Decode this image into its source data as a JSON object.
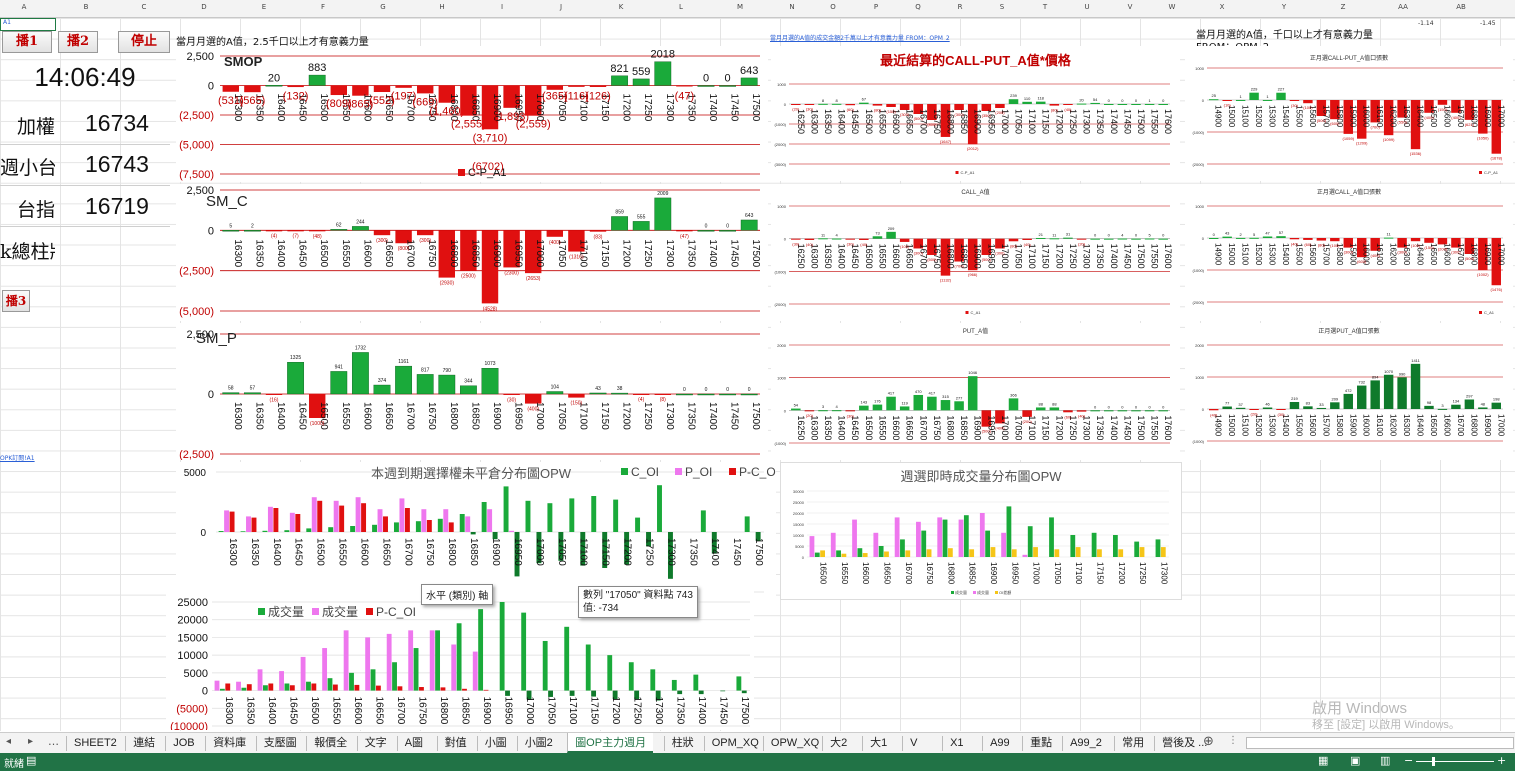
{
  "sheet": {
    "cell_a1": "A1",
    "buttons": {
      "broadcast1": "播1",
      "broadcast2": "播2",
      "stop": "停止",
      "broadcast3": "播3"
    },
    "clock": "14:06:49",
    "rows": [
      {
        "label": "加權",
        "value": "16734"
      },
      {
        "label": "週小台",
        "value": "16743"
      },
      {
        "label": "台指",
        "value": "16719"
      },
      {
        "label": "k總柱狀",
        "value": ""
      }
    ],
    "link_left": "OPK訂閱!A1",
    "columns": [
      "A",
      "B",
      "C",
      "D",
      "E",
      "F",
      "G",
      "H",
      "I",
      "J",
      "K",
      "L",
      "M",
      "N",
      "O",
      "P",
      "Q",
      "R",
      "S",
      "T",
      "U",
      "V",
      "W",
      "X",
      "Y",
      "Z",
      "AA",
      "AB"
    ]
  },
  "top_text": {
    "main_header": "當月月選的A值，2.5千口以上才有意義力量",
    "mid_header": "當月月選的A值的成交金額2千萬以上才有意義力量    FROM：OPM_2",
    "right_header": "當月月選的A值，千口以上才有意義力量",
    "right_from": "FROM：OPM_2",
    "right_num1": "-1.14",
    "right_num2": "-1.45"
  },
  "colors": {
    "green": "#1aaa3a",
    "red": "#e01010",
    "pink": "#ee77ee",
    "yellow": "#f5c518",
    "dkgreen": "#0f7a2b",
    "line": "#c00000"
  },
  "chart_data": [
    {
      "id": "smop",
      "type": "bar",
      "title": "SMOP",
      "legend": "C-P_A1",
      "ylim": [
        -7500,
        2500
      ],
      "yticks": [
        2500,
        0,
        -2500,
        -5000,
        -7500
      ],
      "ytick_labels": [
        "2,500",
        "0",
        "(2,500)",
        "(5,000)",
        "(7,500)"
      ],
      "categories": [
        "16300",
        "16350",
        "16400",
        "16450",
        "16500",
        "16550",
        "16600",
        "16650",
        "16700",
        "16750",
        "16800",
        "16850",
        "16900",
        "16950",
        "17000",
        "17050",
        "17100",
        "17150",
        "17200",
        "17250",
        "17300",
        "17350",
        "17400",
        "17450",
        "17500"
      ],
      "values": [
        -531,
        -565,
        20,
        -132,
        883,
        -809,
        -865,
        -552,
        -197,
        -669,
        -1460,
        -2555,
        -3710,
        -1893,
        -2559,
        -365,
        -116,
        -126,
        821,
        559,
        2018,
        -47,
        0,
        0,
        643
      ],
      "value_labels": [
        "(531)",
        "(565)",
        "20",
        "(132)",
        "883",
        "(809)",
        "(865)",
        "(552)",
        "(197)",
        "(669)",
        "(1,460)",
        "(2,555)",
        "(3,710)",
        "(1,893)",
        "(2,559)",
        "(365)",
        "(116)",
        "(126)",
        "821",
        "559",
        "2018",
        "(47)",
        "0",
        "0",
        "643"
      ],
      "extra_label": "(6702)"
    },
    {
      "id": "smc",
      "type": "bar",
      "title": "SM_C",
      "ylim": [
        -5000,
        2500
      ],
      "yticks": [
        2500,
        0,
        -2500,
        -5000
      ],
      "ytick_labels": [
        "2,500",
        "0",
        "(2,500)",
        "(5,000)"
      ],
      "categories": [
        "16300",
        "16350",
        "16400",
        "16450",
        "16500",
        "16550",
        "16600",
        "16650",
        "16700",
        "16750",
        "16800",
        "16850",
        "16900",
        "16950",
        "17000",
        "17050",
        "17100",
        "17150",
        "17200",
        "17250",
        "17300",
        "17350",
        "17400",
        "17450",
        "17500"
      ],
      "values": [
        5,
        2,
        -4,
        -7,
        -48,
        62,
        244,
        -300,
        -800,
        -300,
        -2930,
        -2500,
        -4528,
        -2300,
        -2653,
        -400,
        -1316,
        -83,
        859,
        555,
        2009,
        -47,
        0,
        0,
        643
      ]
    },
    {
      "id": "smp",
      "type": "bar",
      "title": "SM_P",
      "ylim": [
        -2500,
        2500
      ],
      "yticks": [
        2500,
        0,
        -2500
      ],
      "ytick_labels": [
        "2,500",
        "0",
        "(2,500)"
      ],
      "categories": [
        "16300",
        "16350",
        "16400",
        "16450",
        "16500",
        "16550",
        "16600",
        "16650",
        "16700",
        "16750",
        "16800",
        "16850",
        "16900",
        "16950",
        "17000",
        "17050",
        "17100",
        "17150",
        "17200",
        "17250",
        "17300",
        "17350",
        "17400",
        "17450",
        "17500"
      ],
      "values": [
        58,
        57,
        -16,
        1325,
        -1000,
        941,
        1732,
        374,
        1161,
        817,
        790,
        344,
        1073,
        -30,
        -400,
        104,
        -150,
        43,
        38,
        -4,
        -8,
        0,
        0,
        0,
        0
      ]
    },
    {
      "id": "oi_week",
      "type": "bar",
      "title": "本週到期選擇權未平倉分布圖OPW",
      "series_names": [
        "C_OI",
        "P_OI",
        "P-C_OI"
      ],
      "ylim": [
        -5000,
        5000
      ],
      "yticks": [
        5000,
        0,
        -5000
      ],
      "ytick_labels": [
        "5000",
        "0",
        "(5000)"
      ],
      "categories": [
        "16300",
        "16350",
        "16400",
        "16450",
        "16500",
        "16550",
        "16600",
        "16650",
        "16700",
        "16750",
        "16800",
        "16850",
        "16900",
        "16950",
        "17000",
        "17050",
        "17100",
        "17150",
        "17200",
        "17250",
        "17300",
        "17350",
        "17400",
        "17450",
        "17500"
      ],
      "c_oi": [
        80,
        60,
        100,
        150,
        300,
        400,
        500,
        600,
        800,
        900,
        1100,
        1500,
        2500,
        3800,
        2600,
        2400,
        2800,
        3000,
        2700,
        1200,
        3900,
        0,
        1800,
        0,
        1300
      ],
      "p_oi": [
        1800,
        1300,
        2100,
        1600,
        2900,
        2600,
        2900,
        1900,
        2800,
        1900,
        1900,
        1300,
        1900,
        100,
        0,
        0,
        0,
        0,
        0,
        0,
        0,
        0,
        0,
        0,
        0
      ],
      "pc_oi": [
        1700,
        1200,
        2000,
        1500,
        2600,
        2200,
        2400,
        1300,
        2000,
        1000,
        800,
        -200,
        -600,
        -3700,
        -2600,
        -2400,
        -2800,
        -3000,
        -2700,
        -1200,
        -3900,
        0,
        -1800,
        0,
        -734
      ]
    },
    {
      "id": "vol_week",
      "type": "bar",
      "title": "週選即時成交量分布圖OPW",
      "series_names": [
        "成交量",
        "成交量",
        "OI差額"
      ],
      "ylim": [
        0,
        30000
      ],
      "yticks": [
        30000,
        25000,
        20000,
        15000,
        10000,
        5000,
        0
      ],
      "ytick_labels": [
        "30000",
        "25000",
        "20000",
        "15000",
        "10000",
        "5000",
        "0"
      ],
      "categories": [
        "16500",
        "16550",
        "16600",
        "16650",
        "16700",
        "16750",
        "16800",
        "16850",
        "16900",
        "16950",
        "17000",
        "17050",
        "17100",
        "17150",
        "17200",
        "17250",
        "17300"
      ],
      "green": [
        2000,
        3000,
        4000,
        5000,
        8000,
        12000,
        17000,
        19000,
        12000,
        23000,
        14000,
        18000,
        10000,
        11000,
        10000,
        7000,
        8000
      ],
      "pink": [
        9500,
        11000,
        17000,
        11000,
        18000,
        16000,
        18000,
        17000,
        20000,
        11000,
        1000,
        0,
        0,
        0,
        0,
        0,
        0
      ],
      "yellow": [
        3000,
        1500,
        1800,
        2500,
        3000,
        3500,
        4000,
        3500,
        4500,
        3500,
        4500,
        3500,
        4500,
        3500,
        3500,
        4500,
        4500
      ]
    },
    {
      "id": "vol_main",
      "type": "bar",
      "series_names": [
        "成交量",
        "成交量",
        "P-C_OI"
      ],
      "ylim": [
        -10000,
        25000
      ],
      "yticks": [
        25000,
        20000,
        15000,
        10000,
        5000,
        0,
        -5000,
        -10000
      ],
      "ytick_labels": [
        "25000",
        "20000",
        "15000",
        "10000",
        "5000",
        "0",
        "(5000)",
        "(10000)"
      ],
      "categories": [
        "16300",
        "16350",
        "16400",
        "16450",
        "16500",
        "16550",
        "16600",
        "16650",
        "16700",
        "16750",
        "16800",
        "16850",
        "16900",
        "16950",
        "17000",
        "17050",
        "17100",
        "17150",
        "17200",
        "17250",
        "17300",
        "17350",
        "17400",
        "17450",
        "17500"
      ],
      "green": [
        500,
        800,
        1500,
        2000,
        2500,
        3500,
        5000,
        6000,
        8000,
        12000,
        17000,
        19000,
        23000,
        25000,
        22000,
        14000,
        18000,
        13000,
        10000,
        8000,
        6000,
        3000,
        4500,
        0,
        4000
      ],
      "pink": [
        2800,
        2500,
        6000,
        5500,
        9500,
        12000,
        17000,
        15000,
        16000,
        17000,
        17000,
        13000,
        11000,
        0,
        0,
        0,
        0,
        0,
        0,
        0,
        0,
        0,
        0,
        0,
        0
      ],
      "red": [
        2000,
        1800,
        2000,
        1500,
        2000,
        1700,
        1600,
        1400,
        1200,
        1000,
        900,
        500,
        200,
        -1500,
        -2500,
        -1800,
        -1500,
        -1700,
        -2400,
        -2500,
        -2800,
        -1000,
        -1000,
        -200,
        -734
      ]
    },
    {
      "id": "cp_latest",
      "type": "bar",
      "title": "最近結算的CALL-PUT_A值*價格",
      "legend": "C-P_A1",
      "categories": [
        "16250",
        "16300",
        "16350",
        "16400",
        "16450",
        "16500",
        "16550",
        "16600",
        "16650",
        "16700",
        "16750",
        "16800",
        "16850",
        "16900",
        "16950",
        "17000",
        "17050",
        "17100",
        "17150",
        "17200",
        "17250",
        "17300",
        "17350",
        "17400",
        "17450",
        "17500",
        "17550",
        "17600"
      ],
      "values": [
        -20,
        -30,
        8,
        8,
        -60,
        67,
        -80,
        -150,
        -300,
        -500,
        -800,
        -1647,
        -300,
        -2012,
        -350,
        -200,
        239,
        110,
        118,
        -80,
        -40,
        20,
        54,
        0,
        0,
        0,
        1,
        0
      ]
    },
    {
      "id": "call_a",
      "type": "bar",
      "title": "CALL_A值",
      "legend": "C_A1",
      "categories": [
        "16250",
        "16300",
        "16350",
        "16400",
        "16450",
        "16500",
        "16550",
        "16600",
        "16650",
        "16700",
        "16750",
        "16800",
        "16850",
        "16900",
        "16950",
        "17000",
        "17050",
        "17100",
        "17150",
        "17200",
        "17250",
        "17300",
        "17350",
        "17400",
        "17450",
        "17500",
        "17550",
        "17600"
      ],
      "values": [
        -30,
        -40,
        11,
        4,
        -30,
        -40,
        73,
        209,
        -100,
        -300,
        -500,
        -1132,
        -700,
        -966,
        -500,
        -300,
        -80,
        -40,
        21,
        11,
        31,
        -20,
        0,
        0,
        4,
        0,
        5,
        0
      ]
    },
    {
      "id": "put_a",
      "type": "bar",
      "title": "PUT_A值",
      "legend": "P_A1",
      "categories": [
        "16250",
        "16300",
        "16350",
        "16400",
        "16450",
        "16500",
        "16550",
        "16600",
        "16650",
        "16700",
        "16750",
        "16800",
        "16850",
        "16900",
        "16950",
        "17000",
        "17050",
        "17100",
        "17150",
        "17200",
        "17250",
        "17300",
        "17350",
        "17400",
        "17450",
        "17500",
        "17550",
        "17600"
      ],
      "values": [
        54,
        -20,
        3,
        4,
        -30,
        143,
        176,
        417,
        119,
        470,
        417,
        315,
        277,
        1046,
        -500,
        -400,
        366,
        -200,
        88,
        88,
        -60,
        -40,
        0,
        0,
        0,
        0,
        0,
        0
      ]
    },
    {
      "id": "cp_n",
      "type": "bar",
      "title": "正月選CALL-PUT_A值口張數",
      "legend": "C-P_A1",
      "categories": [
        "14900",
        "15000",
        "15100",
        "15200",
        "15300",
        "15400",
        "15500",
        "15600",
        "15700",
        "15800",
        "15900",
        "16000",
        "16100",
        "16200",
        "16300",
        "16400",
        "16500",
        "16600",
        "16700",
        "16800",
        "16900",
        "17000"
      ],
      "values": [
        25,
        -10,
        1,
        229,
        1,
        227,
        -30,
        -100,
        -500,
        -600,
        -1059,
        -1209,
        -700,
        -1099,
        -550,
        -1536,
        -400,
        -150,
        -400,
        -621,
        -1050,
        -1678
      ]
    },
    {
      "id": "call_n",
      "type": "bar",
      "title": "正月選CALL_A值口張數",
      "legend": "C_A1",
      "categories": [
        "14900",
        "15000",
        "15100",
        "15200",
        "15300",
        "15400",
        "15500",
        "15600",
        "15700",
        "15800",
        "15900",
        "16000",
        "16100",
        "16200",
        "16300",
        "16400",
        "16500",
        "16600",
        "16700",
        "16800",
        "16900",
        "17000"
      ],
      "values": [
        0,
        43,
        2,
        5,
        47,
        57,
        -40,
        -60,
        -80,
        -100,
        -300,
        -600,
        -400,
        11,
        -300,
        -100,
        -150,
        -200,
        -300,
        -500,
        -1002,
        -1476
      ]
    },
    {
      "id": "put_n",
      "type": "bar",
      "title": "正月選PUT_A值口張數",
      "legend": "P_A1",
      "categories": [
        "14900",
        "15000",
        "15100",
        "15200",
        "15300",
        "15400",
        "15500",
        "15600",
        "15700",
        "15800",
        "15900",
        "16000",
        "16100",
        "16200",
        "16300",
        "16400",
        "16500",
        "16600",
        "16700",
        "16800",
        "16900",
        "17000"
      ],
      "values": [
        -40,
        77,
        37,
        -20,
        46,
        -30,
        219,
        83,
        33,
        209,
        472,
        732,
        894,
        1070,
        990,
        1411,
        98,
        3,
        134,
        297,
        48,
        198
      ]
    }
  ],
  "tooltips": {
    "axis": "水平 (類別) 軸",
    "series_line1": "數列 \"17050\" 資料點 743",
    "series_line2": "值: -734"
  },
  "tabs": [
    "SHEET2",
    "連結",
    "JOB",
    "資料庫",
    "支壓圖",
    "報價全",
    "文字",
    "A圖",
    "對值",
    "小圖",
    "小圖2",
    "圖OP主力週月",
    "柱狀",
    "OPM_XQ",
    "OPW_XQ",
    "大2",
    "大1",
    "V",
    "X1",
    "A99",
    "重點",
    "A99_2",
    "常用",
    "營後及 ..."
  ],
  "active_tab": "圖OP主力週月",
  "status": {
    "left": "就緒",
    "watermark1": "啟用 Windows",
    "watermark2": "移至 [設定] 以啟用 Windows。"
  }
}
